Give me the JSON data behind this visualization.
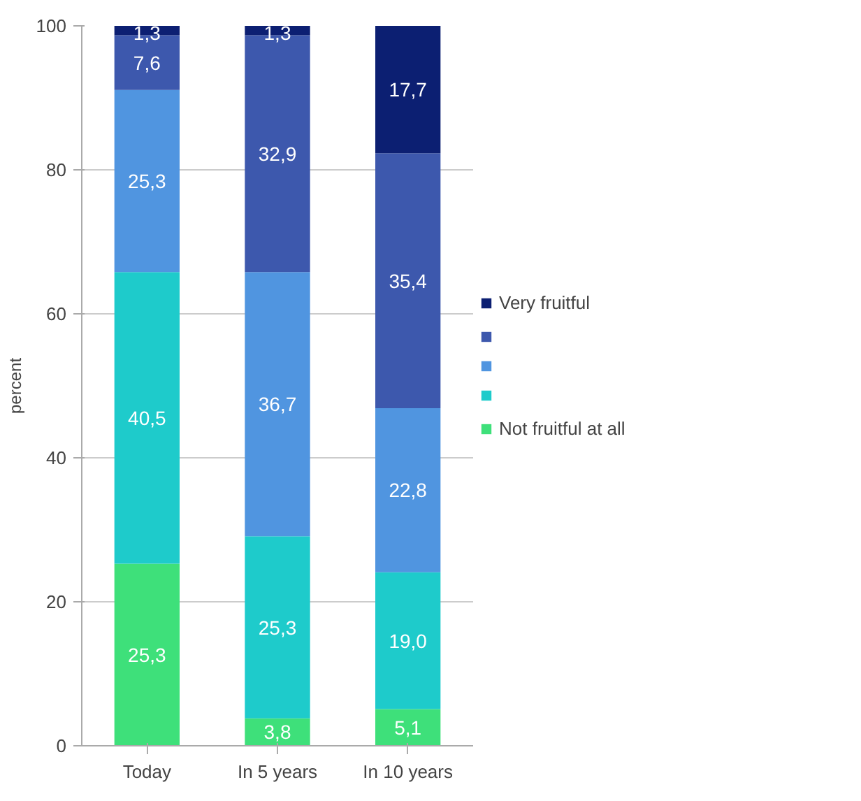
{
  "chart_data": {
    "type": "bar",
    "stacked": true,
    "ylabel": "percent",
    "categories": [
      "Today",
      "In 5 years",
      "In 10 years"
    ],
    "series": [
      {
        "name": "Not fruitful at all",
        "color": "#3ee07a",
        "values": [
          25.3,
          3.8,
          5.1
        ],
        "value_labels": [
          "25,3",
          "3,8",
          "5,1"
        ]
      },
      {
        "name": null,
        "color": "#1ecbcb",
        "values": [
          40.5,
          25.3,
          19.0
        ],
        "value_labels": [
          "40,5",
          "25,3",
          "19,0"
        ]
      },
      {
        "name": null,
        "color": "#5095e0",
        "values": [
          25.3,
          36.7,
          22.8
        ],
        "value_labels": [
          "25,3",
          "36,7",
          "22,8"
        ]
      },
      {
        "name": null,
        "color": "#3d58ad",
        "values": [
          7.6,
          32.9,
          35.4
        ],
        "value_labels": [
          "7,6",
          "32,9",
          "35,4"
        ]
      },
      {
        "name": "Very fruitful",
        "color": "#0c1f72",
        "values": [
          1.3,
          1.3,
          17.7
        ],
        "value_labels": [
          "1,3",
          "1,3",
          "17,7"
        ]
      }
    ],
    "ylim": [
      0,
      100
    ],
    "yticks": [
      0,
      20,
      40,
      60,
      80,
      100
    ],
    "grid": "y",
    "legend": "right"
  }
}
